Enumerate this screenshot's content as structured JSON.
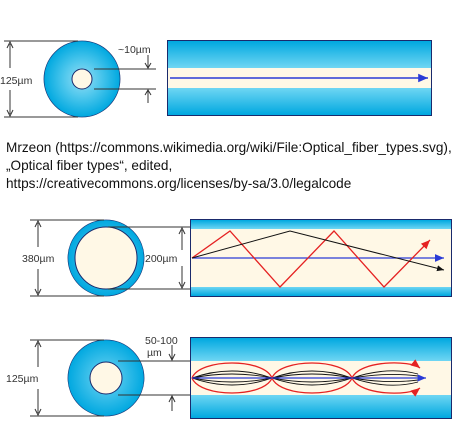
{
  "figure_1": {
    "type": "single-mode",
    "cladding_diameter_label": "125µm",
    "core_diameter_label": "~10µm"
  },
  "credit": {
    "line1": "Mrzeon (https://commons.wikimedia.org/wiki/File:Optical_fiber_types.svg),",
    "line2": "„Optical fiber types“, edited,",
    "line3": "https://creativecommons.org/licenses/by-sa/3.0/legalcode"
  },
  "figure_2": {
    "type": "multi-mode step-index",
    "cladding_diameter_label": "380µm",
    "core_diameter_label": "200µm"
  },
  "figure_3": {
    "type": "multi-mode graded-index",
    "cladding_diameter_label": "125µm",
    "core_diameter_label_line1": "50-100",
    "core_diameter_label_line2": "µm"
  },
  "colors": {
    "cladding_edge": "#00a8e0",
    "cladding_center": "#7fdaf5",
    "core": "#fff8e6",
    "jacket": "#1a2a6c",
    "ray_blue": "#2a3bd6",
    "ray_red": "#e52222",
    "ray_black": "#111111",
    "dimension_line": "#333333"
  }
}
